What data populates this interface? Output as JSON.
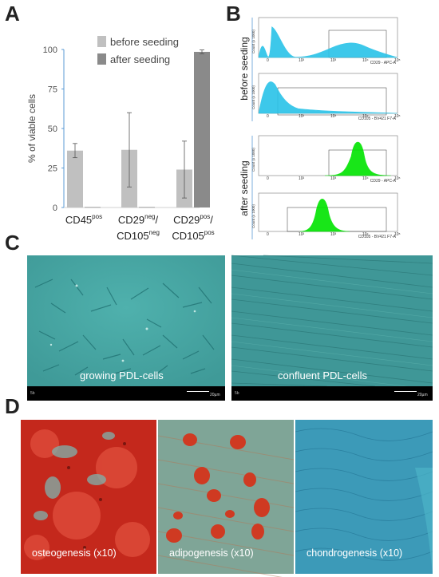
{
  "panel_letters": {
    "a": "A",
    "b": "B",
    "c": "C",
    "d": "D"
  },
  "chart_data": {
    "type": "bar",
    "ylabel": "% of viable cells",
    "ylim": [
      0,
      100
    ],
    "yticks": [
      0,
      25,
      50,
      75,
      100
    ],
    "grid": false,
    "legend_position": "top-right",
    "categories": [
      {
        "main": "CD45",
        "sup": "pos",
        "line2_main": "",
        "line2_sup": ""
      },
      {
        "main": "CD29",
        "sup": "neg",
        "suffix": "/",
        "line2_main": "CD105",
        "line2_sup": "neg"
      },
      {
        "main": "CD29",
        "sup": "pos",
        "suffix": "/",
        "line2_main": "CD105",
        "line2_sup": "pos"
      }
    ],
    "series": [
      {
        "name": "before seeding",
        "color": "#c0c0c0",
        "values": [
          36,
          36.5,
          24
        ],
        "errors": [
          4.5,
          23.5,
          18
        ]
      },
      {
        "name": "after seeding",
        "color": "#8a8a8a",
        "values": [
          0.3,
          0.3,
          98.5
        ],
        "errors": [
          0,
          0,
          1.2
        ]
      }
    ]
  },
  "flow_panel": {
    "before_label": "before seeding",
    "after_label": "after seeding",
    "ylabel": "Count (x 1000)",
    "histograms": [
      {
        "axis": "CD29 - APC-A",
        "color": "#29c3e8",
        "group": "before"
      },
      {
        "axis": "CD105 - BV421 F7-A",
        "color": "#29c3e8",
        "group": "before"
      },
      {
        "axis": "CD29 - APC-A",
        "color": "#00e400",
        "group": "after"
      },
      {
        "axis": "CD105 - BV421 F7-A",
        "color": "#00e400",
        "group": "after"
      }
    ],
    "xticks": [
      "0",
      "10²",
      "10³",
      "10⁴",
      "10⁵"
    ]
  },
  "micrographs_c": [
    {
      "caption": "growing PDL-cells",
      "corner": "5b",
      "scale": "20µm"
    },
    {
      "caption": "confluent PDL-cells",
      "corner": "5b",
      "scale": "20µm"
    }
  ],
  "micrographs_d": [
    {
      "caption": "osteogenesis (x10)"
    },
    {
      "caption": "adipogenesis (x10)"
    },
    {
      "caption": "chondrogenesis (x10)"
    }
  ]
}
